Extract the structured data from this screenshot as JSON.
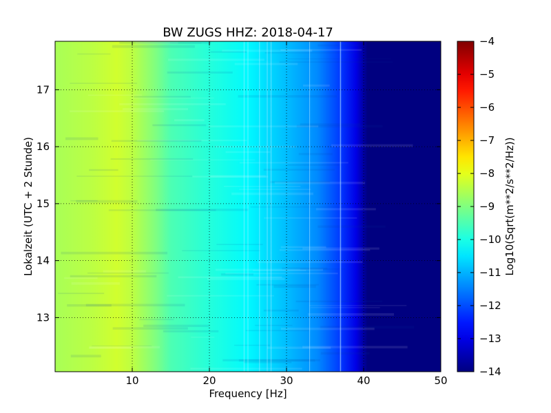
{
  "chart_data": {
    "type": "heatmap",
    "title": "BW ZUGS HHZ: 2018-04-17",
    "xlabel": "Frequency [Hz]",
    "ylabel": "Lokalzeit (UTC + 2 Stunde)",
    "colorbar_label": "Log10(Sqrt(m**2/s**2/Hz))",
    "xlim": [
      0,
      50
    ],
    "ylim": [
      17.85,
      12.05
    ],
    "x_ticks": [
      10,
      20,
      30,
      40,
      50
    ],
    "y_ticks": [
      13,
      14,
      15,
      16,
      17
    ],
    "colorbar_range": [
      -14,
      -4
    ],
    "colorbar_ticks": [
      -4,
      -5,
      -6,
      -7,
      -8,
      -9,
      -10,
      -11,
      -12,
      -13,
      -14
    ],
    "colormap": "jet",
    "grid": true,
    "spectrum_profile": {
      "frequency_hz": [
        0,
        5,
        8,
        10,
        13,
        15,
        20,
        25,
        30,
        34,
        37,
        39,
        40.5,
        50
      ],
      "log10_amplitude": [
        -8.6,
        -8.4,
        -8.2,
        -8.4,
        -9.0,
        -9.5,
        -9.9,
        -10.3,
        -10.9,
        -11.4,
        -12.2,
        -13.0,
        -14.0,
        -14.0
      ]
    },
    "narrow_band_lines_hz": [
      24.5,
      25,
      26.5,
      27.5,
      28,
      33,
      37
    ]
  }
}
